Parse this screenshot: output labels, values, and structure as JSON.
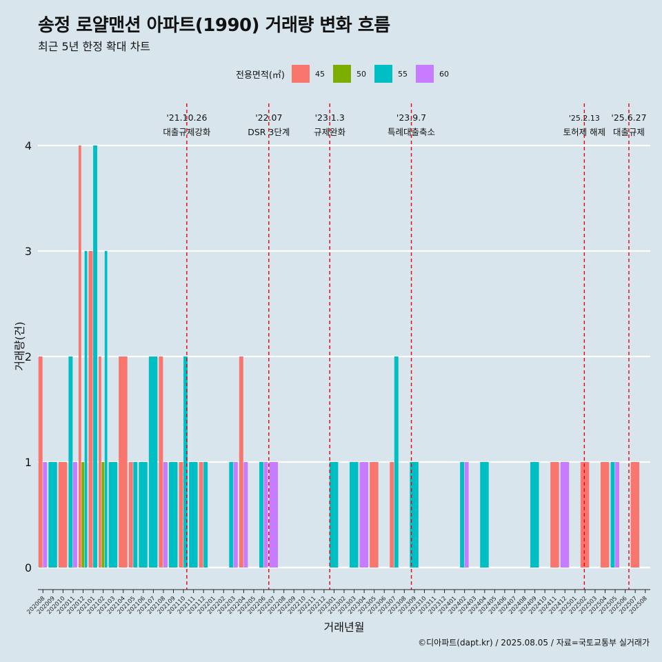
{
  "title": "송정 로얄맨션 아파트(1990) 거래량 변화 흐름",
  "subtitle": "최근 5년 한정 확대 차트",
  "caption": "©디아파트(dapt.kr) / 2025.08.05 / 자료=국토교통부 실거래가",
  "legend": {
    "title": "전용면적(㎡)",
    "items": [
      {
        "label": "45",
        "color": "#f8766d"
      },
      {
        "label": "50",
        "color": "#7cae00"
      },
      {
        "label": "55",
        "color": "#00bfc4"
      },
      {
        "label": "60",
        "color": "#c77cff"
      }
    ]
  },
  "chart_data": {
    "type": "bar",
    "xlabel": "거래년월",
    "ylabel": "거래량(건)",
    "ylim": [
      0,
      4
    ],
    "yticks": [
      0,
      1,
      2,
      3,
      4
    ],
    "grid": true,
    "legend_position": "top",
    "categories": [
      "202008",
      "202009",
      "202010",
      "202011",
      "202012",
      "202101",
      "202102",
      "202103",
      "202104",
      "202105",
      "202106",
      "202107",
      "202108",
      "202109",
      "202110",
      "202111",
      "202112",
      "202201",
      "202202",
      "202203",
      "202204",
      "202205",
      "202206",
      "202207",
      "202208",
      "202209",
      "202210",
      "202211",
      "202212",
      "202301",
      "202302",
      "202303",
      "202304",
      "202305",
      "202306",
      "202307",
      "202308",
      "202309",
      "202310",
      "202311",
      "202312",
      "202401",
      "202402",
      "202403",
      "202404",
      "202405",
      "202406",
      "202407",
      "202408",
      "202409",
      "202410",
      "202411",
      "202412",
      "202501",
      "202502",
      "202503",
      "202504",
      "202505",
      "202506",
      "202507",
      "202508"
    ],
    "series": [
      {
        "name": "45",
        "color": "#f8766d",
        "values": [
          2,
          0,
          1,
          0,
          4,
          3,
          2,
          0,
          2,
          1,
          0,
          0,
          2,
          0,
          1,
          0,
          1,
          0,
          0,
          0,
          2,
          0,
          0,
          0,
          0,
          0,
          0,
          0,
          0,
          0,
          0,
          0,
          0,
          1,
          0,
          1,
          0,
          0,
          0,
          0,
          0,
          0,
          0,
          0,
          0,
          0,
          0,
          0,
          0,
          0,
          0,
          1,
          0,
          0,
          1,
          0,
          1,
          0,
          0,
          1,
          0
        ]
      },
      {
        "name": "50",
        "color": "#7cae00",
        "values": [
          0,
          0,
          0,
          0,
          1,
          0,
          1,
          0,
          0,
          0,
          0,
          0,
          0,
          0,
          0,
          0,
          0,
          0,
          0,
          0,
          0,
          0,
          0,
          0,
          0,
          0,
          0,
          0,
          0,
          0,
          0,
          0,
          0,
          0,
          0,
          0,
          0,
          0,
          0,
          0,
          0,
          0,
          0,
          0,
          0,
          0,
          0,
          0,
          0,
          0,
          0,
          0,
          0,
          0,
          0,
          0,
          0,
          0,
          0,
          0,
          0
        ]
      },
      {
        "name": "55",
        "color": "#00bfc4",
        "values": [
          0,
          1,
          0,
          2,
          3,
          4,
          3,
          1,
          0,
          1,
          1,
          2,
          0,
          1,
          2,
          1,
          1,
          0,
          0,
          1,
          0,
          0,
          1,
          0,
          0,
          0,
          0,
          0,
          0,
          1,
          0,
          1,
          0,
          0,
          0,
          2,
          0,
          1,
          0,
          0,
          0,
          0,
          1,
          0,
          1,
          0,
          0,
          0,
          0,
          1,
          0,
          0,
          0,
          0,
          0,
          0,
          0,
          1,
          0,
          0,
          0
        ]
      },
      {
        "name": "60",
        "color": "#c77cff",
        "values": [
          1,
          0,
          0,
          1,
          0,
          0,
          0,
          0,
          0,
          0,
          0,
          0,
          1,
          0,
          0,
          0,
          0,
          0,
          0,
          1,
          1,
          0,
          1,
          1,
          0,
          0,
          0,
          0,
          0,
          0,
          0,
          0,
          1,
          0,
          0,
          0,
          0,
          0,
          0,
          0,
          0,
          0,
          1,
          0,
          0,
          0,
          0,
          0,
          0,
          0,
          0,
          0,
          1,
          0,
          0,
          0,
          0,
          1,
          0,
          0,
          0
        ]
      }
    ],
    "events": [
      {
        "date": "'21.10.26",
        "label": "대출규제강화",
        "month": "202110",
        "offset": 0.83
      },
      {
        "date": "'22.07",
        "label": "DSR 3단계",
        "month": "202207",
        "offset": 0.0
      },
      {
        "date": "'23.1.3",
        "label": "규제완화",
        "month": "202301",
        "offset": 0.07
      },
      {
        "date": "'23.9.7",
        "label": "특례대출축소",
        "month": "202309",
        "offset": 0.2
      },
      {
        "date": "'25.2.13",
        "label": "토허제 해제",
        "month": "202502",
        "offset": 0.43
      },
      {
        "date": "'25.6.27",
        "label": "대출규제",
        "month": "202506",
        "offset": 0.87
      }
    ]
  }
}
